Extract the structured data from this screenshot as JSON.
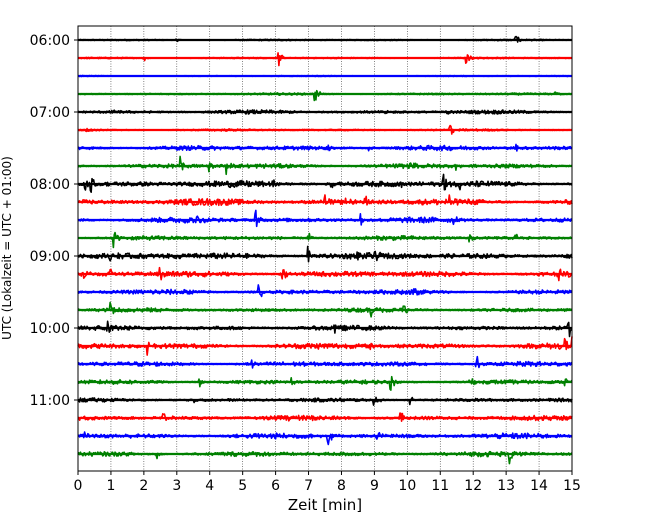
{
  "chart_data": {
    "type": "line",
    "title": "",
    "xlabel": "Zeit  [min]",
    "ylabel": "UTC (Lokalzeit = UTC + 01:00)",
    "xlim": [
      0,
      15
    ],
    "x_ticks": [
      "0",
      "1",
      "2",
      "3",
      "4",
      "5",
      "6",
      "7",
      "8",
      "9",
      "10",
      "11",
      "12",
      "13",
      "14",
      "15"
    ],
    "y_tick_labels": [
      "06:00",
      "07:00",
      "08:00",
      "09:00",
      "10:00",
      "11:00"
    ],
    "trace_interval_minutes": 15,
    "first_trace": "06:00",
    "trace_count": 24,
    "colors": [
      "#000000",
      "#ff0000",
      "#0000ff",
      "#008000"
    ],
    "grid_x": true,
    "series": [
      {
        "start": "06:00",
        "color": "#000000",
        "amplitude": 0.15,
        "events": [
          [
            3.0,
            0.3
          ],
          [
            13.3,
            0.5
          ]
        ]
      },
      {
        "start": "06:15",
        "color": "#ff0000",
        "amplitude": 0.15,
        "events": [
          [
            2.0,
            0.4
          ],
          [
            6.1,
            0.8
          ],
          [
            11.8,
            0.6
          ]
        ]
      },
      {
        "start": "06:30",
        "color": "#0000ff",
        "amplitude": 0.1,
        "events": []
      },
      {
        "start": "06:45",
        "color": "#008000",
        "amplitude": 0.2,
        "events": [
          [
            7.2,
            1.2
          ],
          [
            14.5,
            0.3
          ]
        ]
      },
      {
        "start": "07:00",
        "color": "#000000",
        "amplitude": 0.35,
        "events": [
          [
            1.0,
            0.4
          ],
          [
            9.3,
            0.5
          ],
          [
            11.2,
            0.4
          ]
        ]
      },
      {
        "start": "07:15",
        "color": "#ff0000",
        "amplitude": 0.2,
        "events": [
          [
            0.2,
            0.6
          ],
          [
            11.3,
            1.2
          ]
        ]
      },
      {
        "start": "07:30",
        "color": "#0000ff",
        "amplitude": 0.45,
        "events": [
          [
            7.6,
            0.5
          ],
          [
            8.8,
            0.6
          ],
          [
            13.3,
            0.5
          ]
        ]
      },
      {
        "start": "07:45",
        "color": "#008000",
        "amplitude": 0.45,
        "events": [
          [
            3.1,
            1.0
          ],
          [
            4.0,
            0.6
          ],
          [
            4.5,
            0.7
          ],
          [
            10.1,
            0.5
          ],
          [
            11.5,
            0.5
          ]
        ]
      },
      {
        "start": "08:00",
        "color": "#000000",
        "amplitude": 0.6,
        "events": [
          [
            0.2,
            0.8
          ],
          [
            0.4,
            1.0
          ],
          [
            5.9,
            0.5
          ],
          [
            7.7,
            0.6
          ],
          [
            9.8,
            0.5
          ],
          [
            11.1,
            1.0
          ],
          [
            11.6,
            0.6
          ]
        ]
      },
      {
        "start": "08:15",
        "color": "#ff0000",
        "amplitude": 0.6,
        "events": [
          [
            7.5,
            0.8
          ],
          [
            8.1,
            0.7
          ],
          [
            8.7,
            1.2
          ],
          [
            11.3,
            0.5
          ]
        ]
      },
      {
        "start": "08:30",
        "color": "#0000ff",
        "amplitude": 0.5,
        "events": [
          [
            3.6,
            0.5
          ],
          [
            5.4,
            1.3
          ],
          [
            8.6,
            0.8
          ],
          [
            11.4,
            0.5
          ]
        ]
      },
      {
        "start": "08:45",
        "color": "#008000",
        "amplitude": 0.4,
        "events": [
          [
            1.1,
            1.0
          ],
          [
            7.0,
            0.6
          ],
          [
            11.9,
            1.2
          ],
          [
            13.3,
            0.4
          ]
        ]
      },
      {
        "start": "09:00",
        "color": "#000000",
        "amplitude": 0.6,
        "events": [
          [
            1.0,
            0.9
          ],
          [
            3.0,
            0.6
          ],
          [
            7.0,
            1.0
          ],
          [
            8.4,
            0.5
          ],
          [
            9.0,
            0.5
          ]
        ]
      },
      {
        "start": "09:15",
        "color": "#ff0000",
        "amplitude": 0.55,
        "events": [
          [
            0.2,
            0.5
          ],
          [
            1.0,
            0.5
          ],
          [
            2.5,
            0.7
          ],
          [
            6.2,
            1.2
          ],
          [
            14.6,
            0.6
          ]
        ]
      },
      {
        "start": "09:30",
        "color": "#0000ff",
        "amplitude": 0.45,
        "events": [
          [
            3.0,
            0.6
          ],
          [
            5.5,
            1.1
          ],
          [
            10.2,
            0.8
          ]
        ]
      },
      {
        "start": "09:45",
        "color": "#008000",
        "amplitude": 0.4,
        "events": [
          [
            1.0,
            1.0
          ],
          [
            8.9,
            0.5
          ],
          [
            9.9,
            0.6
          ]
        ]
      },
      {
        "start": "10:00",
        "color": "#000000",
        "amplitude": 0.45,
        "events": [
          [
            0.9,
            1.0
          ],
          [
            7.8,
            0.6
          ],
          [
            14.9,
            1.3
          ]
        ]
      },
      {
        "start": "10:15",
        "color": "#ff0000",
        "amplitude": 0.55,
        "events": [
          [
            2.1,
            0.8
          ],
          [
            8.9,
            0.5
          ],
          [
            14.8,
            0.9
          ],
          [
            15.0,
            1.2
          ]
        ]
      },
      {
        "start": "10:30",
        "color": "#0000ff",
        "amplitude": 0.45,
        "events": [
          [
            5.3,
            0.5
          ],
          [
            10.3,
            0.6
          ],
          [
            12.1,
            1.0
          ]
        ]
      },
      {
        "start": "10:45",
        "color": "#008000",
        "amplitude": 0.4,
        "events": [
          [
            3.7,
            0.6
          ],
          [
            6.5,
            0.5
          ],
          [
            9.5,
            0.9
          ],
          [
            11.9,
            0.5
          ],
          [
            14.8,
            0.6
          ]
        ]
      },
      {
        "start": "11:00",
        "color": "#000000",
        "amplitude": 0.35,
        "events": [
          [
            3.5,
            0.6
          ],
          [
            9.0,
            1.1
          ],
          [
            10.1,
            0.5
          ]
        ]
      },
      {
        "start": "11:15",
        "color": "#ff0000",
        "amplitude": 0.45,
        "events": [
          [
            2.6,
            0.6
          ],
          [
            6.3,
            0.5
          ],
          [
            9.8,
            0.9
          ]
        ]
      },
      {
        "start": "11:30",
        "color": "#0000ff",
        "amplitude": 0.5,
        "events": [
          [
            0.2,
            0.6
          ],
          [
            7.6,
            1.1
          ],
          [
            9.1,
            0.5
          ]
        ]
      },
      {
        "start": "11:45",
        "color": "#008000",
        "amplitude": 0.45,
        "events": [
          [
            2.4,
            0.5
          ],
          [
            13.1,
            1.0
          ]
        ]
      }
    ]
  }
}
